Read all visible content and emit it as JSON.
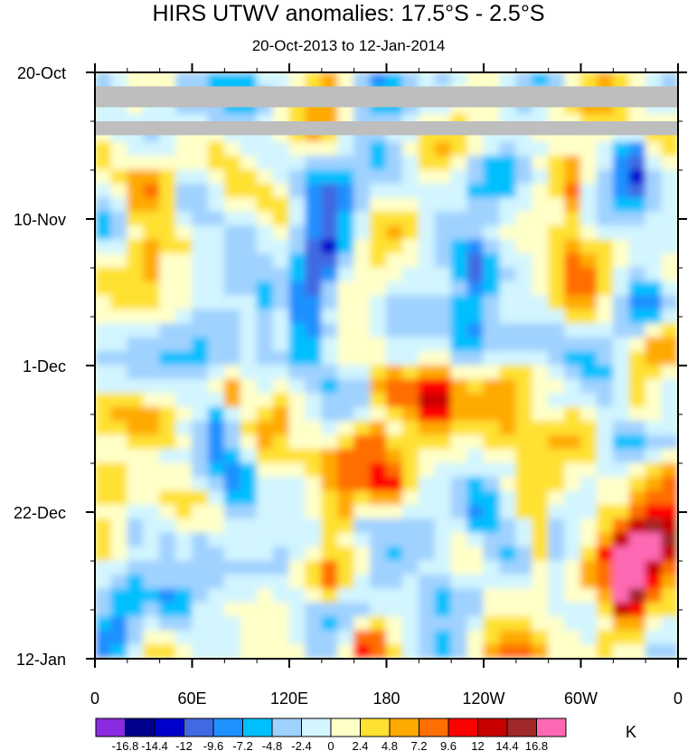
{
  "chart_data": {
    "type": "heatmap",
    "title": "HIRS UTWV anomalies: 17.5°S - 2.5°S",
    "subtitle": "20-Oct-2013 to 12-Jan-2014",
    "x_ticks": [
      "0",
      "60E",
      "120E",
      "180",
      "120W",
      "60W",
      "0"
    ],
    "x_tick_values": [
      0,
      60,
      120,
      180,
      240,
      300,
      360
    ],
    "y_ticks": [
      "20-Oct",
      "10-Nov",
      "1-Dec",
      "22-Dec",
      "12-Jan"
    ],
    "y_tick_days": [
      0,
      21,
      42,
      63,
      84
    ],
    "xlim": [
      0,
      360
    ],
    "ylim_days": [
      0,
      84
    ],
    "colorbar": {
      "units": "K",
      "labels": [
        "-16.8",
        "-14.4",
        "-12",
        "-9.6",
        "-7.2",
        "-4.8",
        "-2.4",
        "0",
        "2.4",
        "4.8",
        "7.2",
        "9.6",
        "12",
        "14.4",
        "16.8"
      ],
      "colors": [
        "#8a2be2",
        "#00008b",
        "#0000cd",
        "#4169e1",
        "#1e90ff",
        "#00bfff",
        "#a0d2ff",
        "#d2f5ff",
        "#ffffc8",
        "#ffe132",
        "#ffaa00",
        "#ff6e00",
        "#ff0000",
        "#c80000",
        "#a02828",
        "#ff69b4"
      ]
    },
    "missing_color": "#bebebe",
    "missing_regions": [
      {
        "lon": [
          0,
          360
        ],
        "day": [
          2,
          5
        ]
      },
      {
        "lon": [
          0,
          360
        ],
        "day": [
          7,
          9
        ]
      }
    ],
    "features": [
      {
        "lon": 328,
        "day": 74,
        "value": 16,
        "radius": [
          10,
          6
        ]
      },
      {
        "lon": 340,
        "day": 70,
        "value": 12,
        "radius": [
          20,
          9
        ]
      },
      {
        "lon": 352,
        "day": 67,
        "value": 7,
        "radius": [
          14,
          10
        ]
      },
      {
        "lon": 168,
        "day": 82,
        "value": 10,
        "radius": [
          10,
          3
        ]
      },
      {
        "lon": 145,
        "day": 73,
        "value": 8,
        "radius": [
          12,
          4
        ]
      },
      {
        "lon": 150,
        "day": 64,
        "value": 8,
        "radius": [
          8,
          4
        ]
      },
      {
        "lon": 170,
        "day": 52,
        "value": 9,
        "radius": [
          6,
          3
        ]
      },
      {
        "lon": 185,
        "day": 59,
        "value": 8,
        "radius": [
          12,
          4
        ]
      },
      {
        "lon": 180,
        "day": 45,
        "value": 9,
        "radius": [
          8,
          3
        ]
      },
      {
        "lon": 10,
        "day": 62,
        "value": 9,
        "radius": [
          5,
          4
        ]
      },
      {
        "lon": 30,
        "day": 27,
        "value": 9,
        "radius": [
          5,
          3
        ]
      },
      {
        "lon": 85,
        "day": 46,
        "value": 8,
        "radius": [
          7,
          3
        ]
      },
      {
        "lon": 275,
        "day": 68,
        "value": 9,
        "radius": [
          8,
          5
        ]
      },
      {
        "lon": 295,
        "day": 18,
        "value": 8,
        "radius": [
          8,
          4
        ]
      },
      {
        "lon": 335,
        "day": 48,
        "value": 7,
        "radius": [
          14,
          5
        ]
      },
      {
        "lon": 300,
        "day": 28,
        "value": 6,
        "radius": [
          16,
          6
        ]
      },
      {
        "lon": 210,
        "day": 46,
        "value": 6,
        "radius": [
          12,
          5
        ]
      },
      {
        "lon": 140,
        "day": 26,
        "value": -10,
        "radius": [
          14,
          8
        ]
      },
      {
        "lon": 130,
        "day": 34,
        "value": -8,
        "radius": [
          10,
          6
        ]
      },
      {
        "lon": 90,
        "day": 59,
        "value": -14,
        "radius": [
          6,
          4
        ]
      },
      {
        "lon": 75,
        "day": 55,
        "value": -8,
        "radius": [
          12,
          6
        ]
      },
      {
        "lon": 333,
        "day": 14,
        "value": -11,
        "radius": [
          10,
          5
        ]
      },
      {
        "lon": 230,
        "day": 38,
        "value": -8,
        "radius": [
          16,
          5
        ]
      },
      {
        "lon": 235,
        "day": 28,
        "value": -7,
        "radius": [
          10,
          4
        ]
      },
      {
        "lon": 330,
        "day": 52,
        "value": -6,
        "radius": [
          16,
          7
        ]
      },
      {
        "lon": 340,
        "day": 32,
        "value": -6,
        "radius": [
          12,
          5
        ]
      },
      {
        "lon": 240,
        "day": 63,
        "value": -7,
        "radius": [
          14,
          4
        ]
      },
      {
        "lon": 105,
        "day": 35,
        "value": -6,
        "radius": [
          10,
          5
        ]
      },
      {
        "lon": 20,
        "day": 80,
        "value": -5,
        "radius": [
          12,
          4
        ]
      },
      {
        "lon": 50,
        "day": 76,
        "value": -6,
        "radius": [
          12,
          4
        ]
      },
      {
        "lon": 180,
        "day": 72,
        "value": -6,
        "radius": [
          10,
          5
        ]
      },
      {
        "lon": 60,
        "day": 20,
        "value": -6,
        "radius": [
          14,
          5
        ]
      },
      {
        "lon": 10,
        "day": 20,
        "value": -5,
        "radius": [
          10,
          5
        ]
      }
    ]
  }
}
